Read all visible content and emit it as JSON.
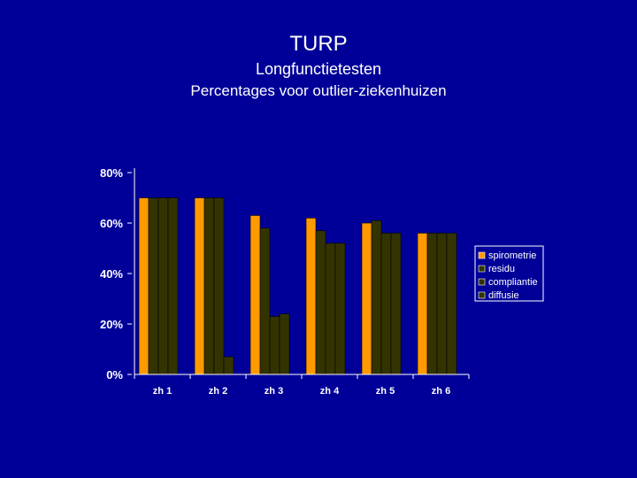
{
  "slide": {
    "title": "TURP",
    "subtitle": "Longfunctietesten",
    "subtitle2": "Percentages voor outlier-ziekenhuizen"
  },
  "chart_data": {
    "type": "bar",
    "categories": [
      "zh 1",
      "zh 2",
      "zh 3",
      "zh 4",
      "zh 5",
      "zh 6"
    ],
    "series": [
      {
        "name": "spirometrie",
        "values": [
          70,
          70,
          63,
          62,
          60,
          56
        ],
        "color": "#ff9900"
      },
      {
        "name": "residu",
        "values": [
          70,
          70,
          58,
          57,
          61,
          56
        ],
        "color": "#333300"
      },
      {
        "name": "compliantie",
        "values": [
          70,
          70,
          23,
          52,
          56,
          56
        ],
        "color": "#333300"
      },
      {
        "name": "diffusie",
        "values": [
          70,
          7,
          24,
          52,
          56,
          56
        ],
        "color": "#333300"
      }
    ],
    "ylim": [
      0,
      80
    ],
    "yticks": [
      "0%",
      "20%",
      "40%",
      "60%",
      "80%"
    ],
    "ytick_values": [
      0,
      20,
      40,
      60,
      80
    ],
    "legend_position": "right",
    "grid": false
  }
}
